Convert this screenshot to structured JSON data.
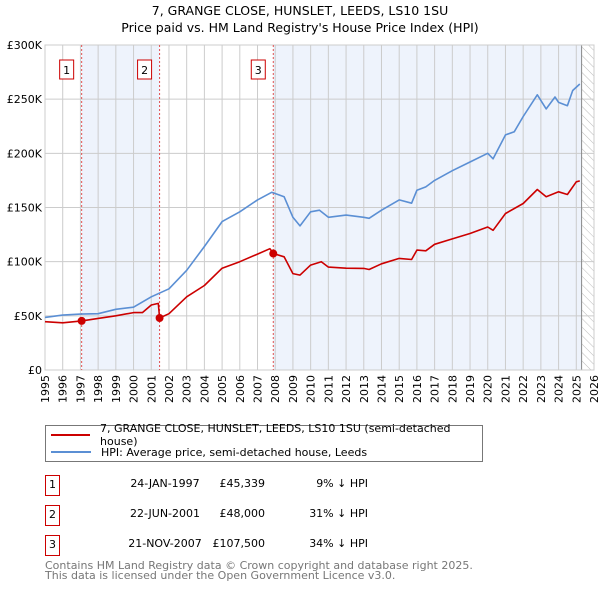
{
  "title_line1": "7, GRANGE CLOSE, HUNSLET, LEEDS, LS10 1SU",
  "title_line2": "Price paid vs. HM Land Registry's House Price Index (HPI)",
  "chart_data": {
    "type": "line",
    "title": "7, GRANGE CLOSE, HUNSLET, LEEDS, LS10 1SU — Price paid vs. HM Land Registry's House Price Index (HPI)",
    "xlabel": "",
    "ylabel": "",
    "xlim": [
      1995,
      2026
    ],
    "ylim": [
      0,
      300000
    ],
    "y_ticks": [
      0,
      50000,
      100000,
      150000,
      200000,
      250000,
      300000
    ],
    "y_tick_labels": [
      "£0",
      "£50K",
      "£100K",
      "£150K",
      "£200K",
      "£250K",
      "£300K"
    ],
    "x_ticks": [
      1995,
      1996,
      1997,
      1998,
      1999,
      2000,
      2001,
      2002,
      2003,
      2004,
      2005,
      2006,
      2007,
      2008,
      2009,
      2010,
      2011,
      2012,
      2013,
      2014,
      2015,
      2016,
      2017,
      2018,
      2019,
      2020,
      2021,
      2022,
      2023,
      2024,
      2025,
      2026
    ],
    "grid": true,
    "data_end": 2025.3,
    "colors": {
      "property": "#cc0000",
      "hpi": "#5b8fd4",
      "shade": "#eef3fc",
      "marker_line": "#e05050"
    },
    "series": [
      {
        "name": "7, GRANGE CLOSE, HUNSLET, LEEDS, LS10 1SU (semi-detached house)",
        "color": "#cc0000",
        "x": [
          1995,
          1996,
          1997.07,
          1998,
          1999,
          2000,
          2000.5,
          2001,
          2001.4,
          2001.47,
          2002,
          2003,
          2004,
          2005,
          2006,
          2007,
          2007.7,
          2007.89,
          2008.5,
          2009,
          2009.4,
          2010,
          2010.6,
          2011,
          2012,
          2013,
          2013.3,
          2014,
          2015,
          2015.7,
          2016,
          2016.5,
          2017,
          2018,
          2019,
          2020,
          2020.3,
          2021,
          2022,
          2022.8,
          2023.3,
          2024,
          2024.5,
          2025,
          2025.2
        ],
        "y": [
          44600,
          43600,
          45339,
          47600,
          50000,
          53000,
          53000,
          60000,
          61500,
          48000,
          52000,
          67600,
          78000,
          94000,
          100000,
          107000,
          112000,
          107500,
          104500,
          89000,
          87600,
          96800,
          100000,
          95000,
          94000,
          93800,
          92800,
          98000,
          103000,
          102000,
          110700,
          110000,
          116000,
          121000,
          126000,
          132000,
          129000,
          144500,
          153700,
          166600,
          160000,
          164500,
          162000,
          173700,
          174600
        ]
      },
      {
        "name": "HPI: Average price, semi-detached house, Leeds",
        "color": "#5b8fd4",
        "x": [
          1995,
          1996,
          1997,
          1998,
          1999,
          2000,
          2001,
          2002,
          2003,
          2004,
          2005,
          2006,
          2007,
          2007.8,
          2008.5,
          2009,
          2009.4,
          2010,
          2010.5,
          2011,
          2012,
          2013,
          2013.3,
          2014,
          2015,
          2015.7,
          2016,
          2016.5,
          2017,
          2018,
          2019,
          2020,
          2020.3,
          2021,
          2021.5,
          2022,
          2022.8,
          2023.3,
          2023.8,
          2024,
          2024.5,
          2024.8,
          2025.2
        ],
        "y": [
          48600,
          50700,
          51600,
          52000,
          56000,
          58000,
          67600,
          75000,
          92000,
          114000,
          137000,
          146000,
          157000,
          164000,
          160000,
          141000,
          133000,
          146000,
          147500,
          141000,
          143000,
          141000,
          140000,
          147500,
          157000,
          154000,
          166000,
          169000,
          175000,
          184000,
          192000,
          200000,
          195000,
          217000,
          220000,
          234000,
          254000,
          241000,
          252000,
          247000,
          244000,
          258000,
          264000
        ]
      }
    ],
    "sales": [
      {
        "label": "1",
        "x": 1997.07,
        "y": 45339
      },
      {
        "label": "2",
        "x": 2001.47,
        "y": 48000
      },
      {
        "label": "3",
        "x": 2007.89,
        "y": 107500
      }
    ]
  },
  "legend": {
    "property": "7, GRANGE CLOSE, HUNSLET, LEEDS, LS10 1SU (semi-detached house)",
    "hpi": "HPI: Average price, semi-detached house, Leeds"
  },
  "transactions": [
    {
      "num": "1",
      "date": "24-JAN-1997",
      "price": "£45,339",
      "hpi": "9% ↓ HPI"
    },
    {
      "num": "2",
      "date": "22-JUN-2001",
      "price": "£48,000",
      "hpi": "31% ↓ HPI"
    },
    {
      "num": "3",
      "date": "21-NOV-2007",
      "price": "£107,500",
      "hpi": "34% ↓ HPI"
    }
  ],
  "footer": {
    "line1": "Contains HM Land Registry data © Crown copyright and database right 2025.",
    "line2": "This data is licensed under the Open Government Licence v3.0."
  }
}
